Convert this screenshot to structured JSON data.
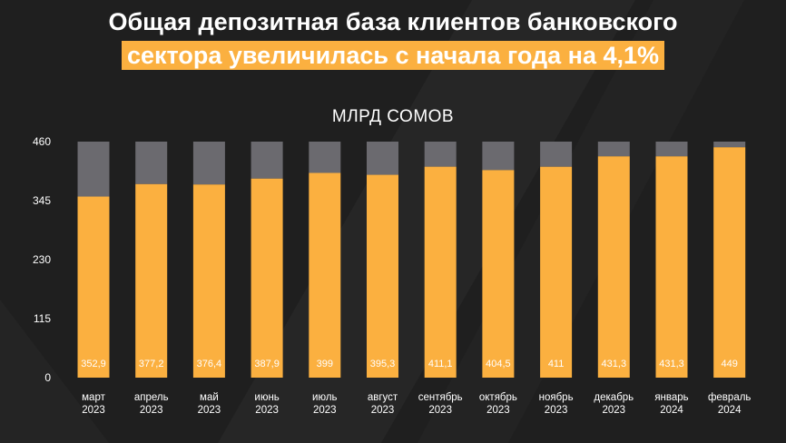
{
  "title": {
    "line1": "Общая депозитная база клиентов банковского",
    "line2": "сектора увеличилась с начала года на 4,1%"
  },
  "colors": {
    "background": "#1f1f1f",
    "bar": "#fbb040",
    "bar_remainder": "#6b6a6f",
    "text": "#ffffff"
  },
  "chart_data": {
    "type": "bar",
    "title": "МЛРД СОМОВ",
    "stacked_with_remainder_to_max": true,
    "categories": [
      [
        "март",
        "2023"
      ],
      [
        "апрель",
        "2023"
      ],
      [
        "май",
        "2023"
      ],
      [
        "июнь",
        "2023"
      ],
      [
        "июль",
        "2023"
      ],
      [
        "август",
        "2023"
      ],
      [
        "сентябрь",
        "2023"
      ],
      [
        "октябрь",
        "2023"
      ],
      [
        "ноябрь",
        "2023"
      ],
      [
        "декабрь",
        "2023"
      ],
      [
        "январь",
        "2024"
      ],
      [
        "февраль",
        "2024"
      ]
    ],
    "values": [
      352.9,
      377.2,
      376.4,
      387.9,
      399,
      395.3,
      411.1,
      404.5,
      411,
      431.3,
      431.3,
      449
    ],
    "value_labels": [
      "352,9",
      "377,2",
      "376,4",
      "387,9",
      "399",
      "395,3",
      "411,1",
      "404,5",
      "411",
      "431,3",
      "431,3",
      "449"
    ],
    "yticks": [
      0,
      115,
      230,
      345,
      460
    ],
    "ylim": [
      0,
      460
    ],
    "grid": false,
    "legend": "none"
  }
}
